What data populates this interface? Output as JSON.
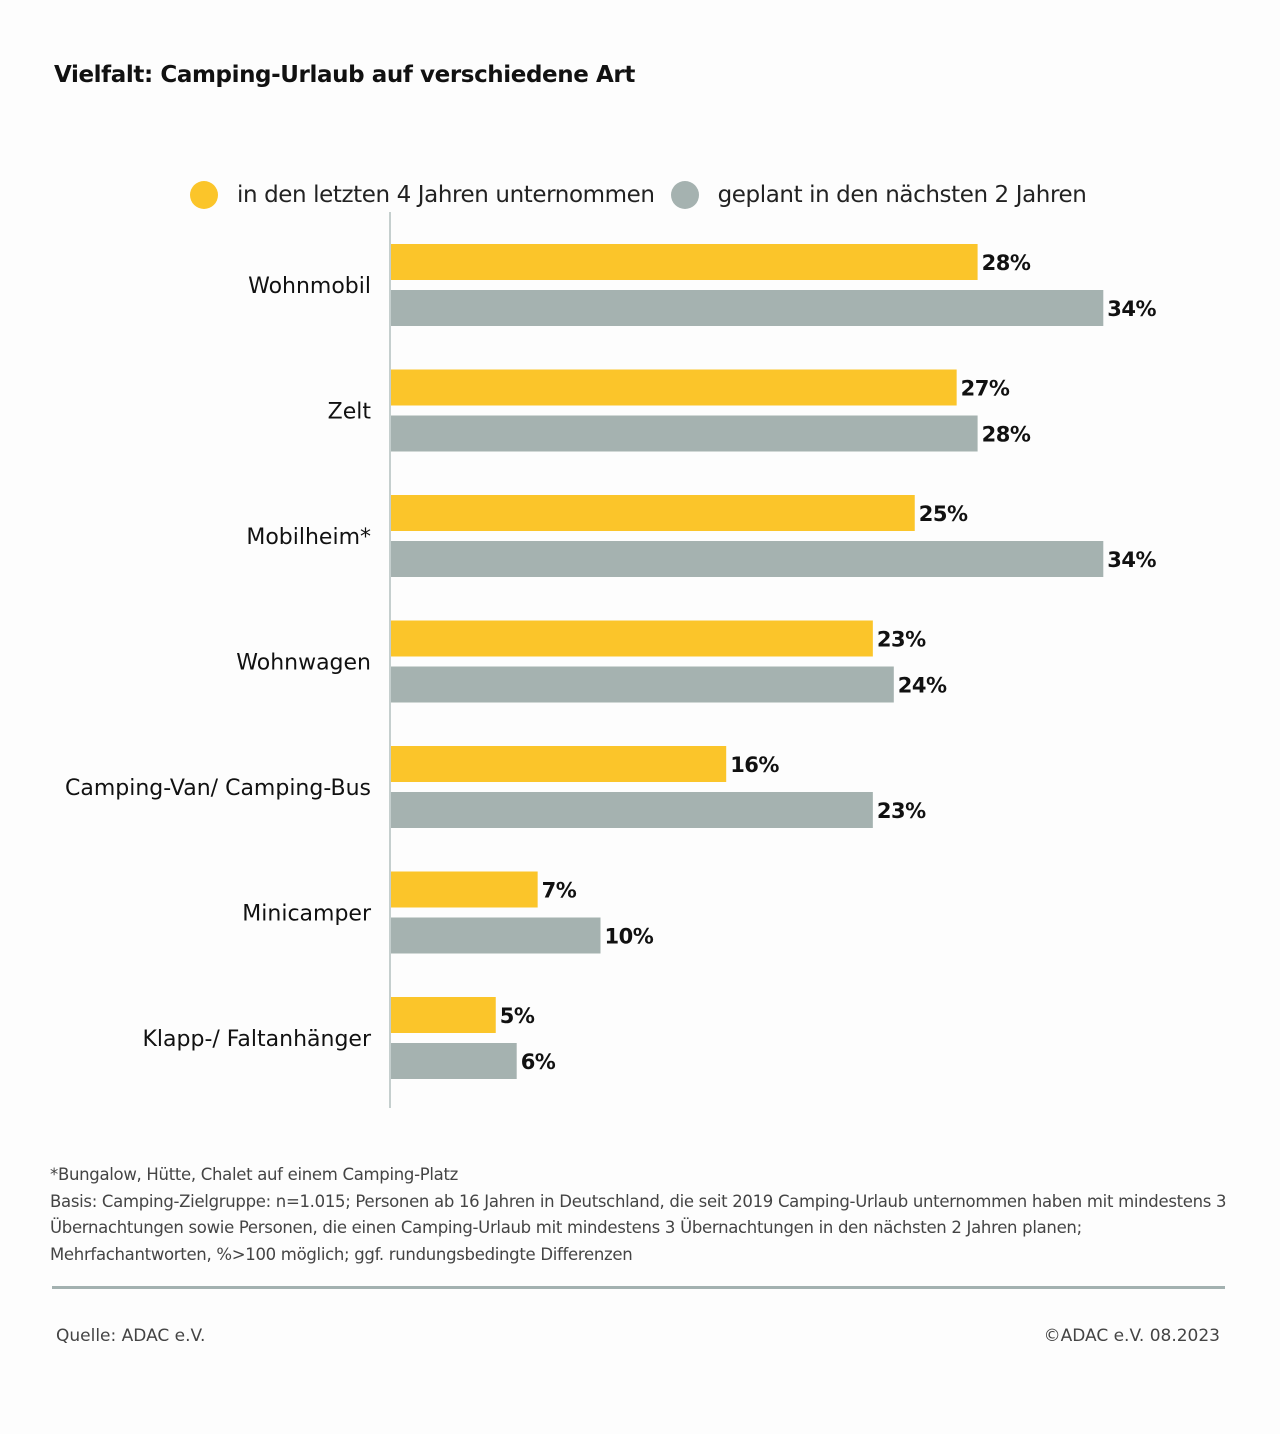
{
  "title": "Vielfalt: Camping-Urlaub auf verschiedene Art",
  "colors": {
    "series1": "#fbc52a",
    "series2": "#a5b2b0",
    "axis": "#c5cfce"
  },
  "chart_data": {
    "type": "bar",
    "orientation": "horizontal",
    "title": "Vielfalt: Camping-Urlaub auf verschiedene Art",
    "xlabel": "",
    "ylabel": "",
    "unit": "%",
    "xlim": [
      0,
      40
    ],
    "grid": false,
    "legend_position": "top",
    "categories": [
      "Wohnmobil",
      "Zelt",
      "Mobilheim*",
      "Wohnwagen",
      "Camping-Van/ Camping-Bus",
      "Minicamper",
      "Klapp-/ Faltanhänger"
    ],
    "series": [
      {
        "name": "in den letzten 4 Jahren unternommen",
        "values": [
          28,
          27,
          25,
          23,
          16,
          7,
          5
        ]
      },
      {
        "name": "geplant in den nächsten 2 Jahren",
        "values": [
          34,
          28,
          34,
          24,
          23,
          10,
          6
        ]
      }
    ]
  },
  "footnotes": {
    "asterisk": "*Bungalow, Hütte, Chalet auf einem Camping-Platz",
    "basis": "Basis: Camping-Zielgruppe: n=1.015; Personen ab 16 Jahren in Deutschland, die seit 2019 Camping-Urlaub unternommen haben mit mindestens 3 Übernachtungen sowie Personen, die einen Camping-Urlaub mit mindestens 3 Übernachtungen in den nächsten 2 Jahren planen; Mehrfachantworten, %>100 möglich; ggf. rundungsbedingte Differenzen"
  },
  "source": "Quelle: ADAC e.V.",
  "copyright": "©ADAC e.V.  08.2023"
}
